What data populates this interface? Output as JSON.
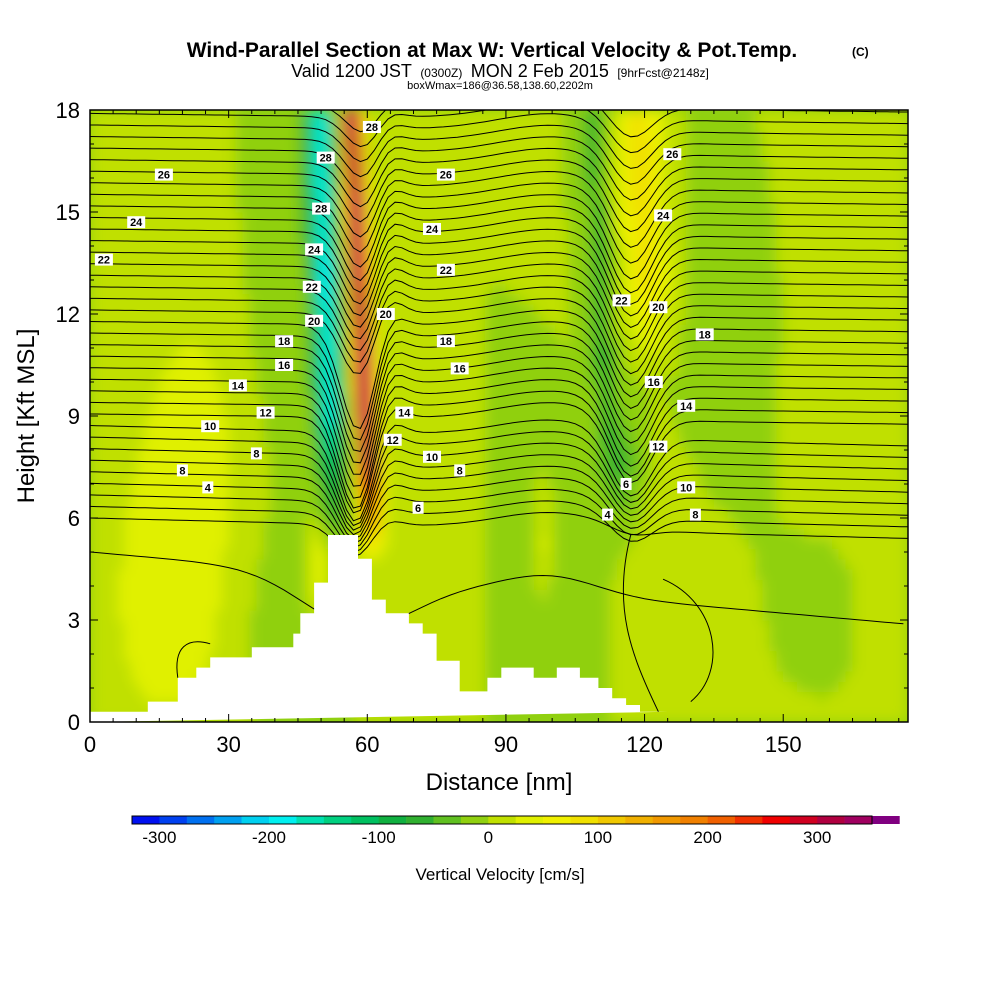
{
  "title": {
    "main": "Wind-Parallel Section at Max W: Vertical Velocity & Pot.Temp.",
    "copyright": "(C)",
    "valid_prefix": "Valid 1200 JST",
    "valid_zulu": "(0300Z)",
    "valid_date": "MON 2 Feb 2015",
    "forecast": "[9hrFcst@2148z]",
    "subline": "boxWmax=186@36.58,138.60,2202m"
  },
  "chart_data": {
    "type": "heatmap",
    "xlabel": "Distance [nm]",
    "ylabel": "Height [Kft MSL]",
    "xlim": [
      0,
      177
    ],
    "ylim": [
      0,
      18
    ],
    "x_ticks": [
      0,
      30,
      60,
      90,
      120,
      150
    ],
    "y_ticks": [
      0,
      3,
      6,
      9,
      12,
      15,
      18
    ],
    "terrain": {
      "x": [
        0,
        12.5,
        12.5,
        19,
        19,
        23,
        23,
        26,
        26,
        35,
        35,
        44,
        44,
        45.5,
        45.5,
        48.5,
        48.5,
        51.5,
        51.5,
        58,
        58,
        61,
        61,
        64,
        64,
        69,
        69,
        72,
        72,
        75,
        75,
        80,
        80,
        86,
        86,
        89,
        89,
        96,
        96,
        101,
        101,
        106,
        106,
        110,
        110,
        113,
        113,
        116,
        116,
        119,
        119,
        125,
        125,
        177
      ],
      "y": [
        0.3,
        0.3,
        0.6,
        0.6,
        1.3,
        1.3,
        1.6,
        1.6,
        1.9,
        1.9,
        2.2,
        2.2,
        2.6,
        2.6,
        3.2,
        3.2,
        4.1,
        4.1,
        5.5,
        5.5,
        4.8,
        4.8,
        3.6,
        3.6,
        3.2,
        3.2,
        2.9,
        2.9,
        2.6,
        2.6,
        1.8,
        1.8,
        0.9,
        0.9,
        1.3,
        1.3,
        1.6,
        1.6,
        1.3,
        1.3,
        1.6,
        1.6,
        1.3,
        1.3,
        1.0,
        1.0,
        0.7,
        0.7,
        0.5,
        0.5,
        0.3,
        0.3
      ]
    },
    "colorbar": {
      "label": "Vertical Velocity [cm/s]",
      "tick_labels": [
        "-300",
        "-200",
        "-100",
        "0",
        "100",
        "200",
        "300"
      ],
      "tick_values": [
        -300,
        -200,
        -100,
        0,
        100,
        200,
        300
      ],
      "range": [
        -325,
        350
      ],
      "step": 25,
      "colors": [
        "#0010f0",
        "#0040f0",
        "#0070f0",
        "#00a0f0",
        "#00d0f0",
        "#00f0f0",
        "#00e0b0",
        "#00d080",
        "#00c060",
        "#10b040",
        "#30b030",
        "#60c020",
        "#90d010",
        "#c0e000",
        "#e0f000",
        "#f0f000",
        "#f0e000",
        "#f0c800",
        "#f0b000",
        "#f09800",
        "#f08000",
        "#f06000",
        "#f03000",
        "#f00000",
        "#d00020",
        "#b00040",
        "#a00060",
        "#800080"
      ]
    },
    "theta_contour_labels": [
      {
        "text": "26",
        "x": 16,
        "y": 16.1
      },
      {
        "text": "24",
        "x": 10,
        "y": 14.7
      },
      {
        "text": "22",
        "x": 3,
        "y": 13.6
      },
      {
        "text": "18",
        "x": 42,
        "y": 11.2
      },
      {
        "text": "16",
        "x": 42,
        "y": 10.5
      },
      {
        "text": "14",
        "x": 32,
        "y": 9.9
      },
      {
        "text": "12",
        "x": 38,
        "y": 9.1
      },
      {
        "text": "10",
        "x": 26,
        "y": 8.7
      },
      {
        "text": "8",
        "x": 36,
        "y": 7.9
      },
      {
        "text": "8",
        "x": 20,
        "y": 7.4
      },
      {
        "text": "4",
        "x": 25.5,
        "y": 6.9
      },
      {
        "text": "28",
        "x": 51,
        "y": 16.6
      },
      {
        "text": "28",
        "x": 50,
        "y": 15.1
      },
      {
        "text": "24",
        "x": 48.5,
        "y": 13.9
      },
      {
        "text": "22",
        "x": 48,
        "y": 12.8
      },
      {
        "text": "20",
        "x": 48.5,
        "y": 11.8
      },
      {
        "text": "28",
        "x": 61,
        "y": 17.5
      },
      {
        "text": "26",
        "x": 77,
        "y": 16.1
      },
      {
        "text": "24",
        "x": 74,
        "y": 14.5
      },
      {
        "text": "22",
        "x": 77,
        "y": 13.3
      },
      {
        "text": "20",
        "x": 64,
        "y": 12.0
      },
      {
        "text": "18",
        "x": 77,
        "y": 11.2
      },
      {
        "text": "16",
        "x": 80,
        "y": 10.4
      },
      {
        "text": "14",
        "x": 68,
        "y": 9.1
      },
      {
        "text": "12",
        "x": 65.5,
        "y": 8.3
      },
      {
        "text": "10",
        "x": 74,
        "y": 7.8
      },
      {
        "text": "8",
        "x": 80,
        "y": 7.4
      },
      {
        "text": "6",
        "x": 71,
        "y": 6.3
      },
      {
        "text": "26",
        "x": 126,
        "y": 16.7
      },
      {
        "text": "24",
        "x": 124,
        "y": 14.9
      },
      {
        "text": "22",
        "x": 115,
        "y": 12.4
      },
      {
        "text": "20",
        "x": 123,
        "y": 12.2
      },
      {
        "text": "18",
        "x": 133,
        "y": 11.4
      },
      {
        "text": "16",
        "x": 122,
        "y": 10.0
      },
      {
        "text": "14",
        "x": 129,
        "y": 9.3
      },
      {
        "text": "12",
        "x": 123,
        "y": 8.1
      },
      {
        "text": "10",
        "x": 129,
        "y": 6.9
      },
      {
        "text": "8",
        "x": 131,
        "y": 6.1
      },
      {
        "text": "6",
        "x": 116,
        "y": 7.0
      },
      {
        "text": "4",
        "x": 112,
        "y": 6.1
      }
    ]
  }
}
